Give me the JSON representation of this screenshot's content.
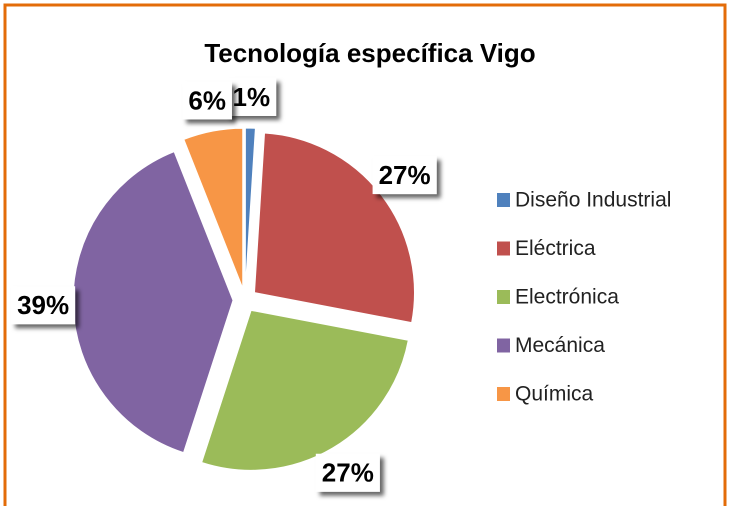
{
  "chart_data": {
    "type": "pie",
    "title": "Tecnología específica Vigo",
    "categories": [
      "Diseño Industrial",
      "Eléctrica",
      "Electrónica",
      "Mecánica",
      "Química"
    ],
    "values": [
      1,
      27,
      27,
      39,
      6
    ],
    "value_labels": [
      "1%",
      "27%",
      "27%",
      "39%",
      "6%"
    ],
    "colors": [
      "#4f81bd",
      "#c0504d",
      "#9bbb59",
      "#8064a2",
      "#f79646"
    ],
    "legend": "right"
  }
}
